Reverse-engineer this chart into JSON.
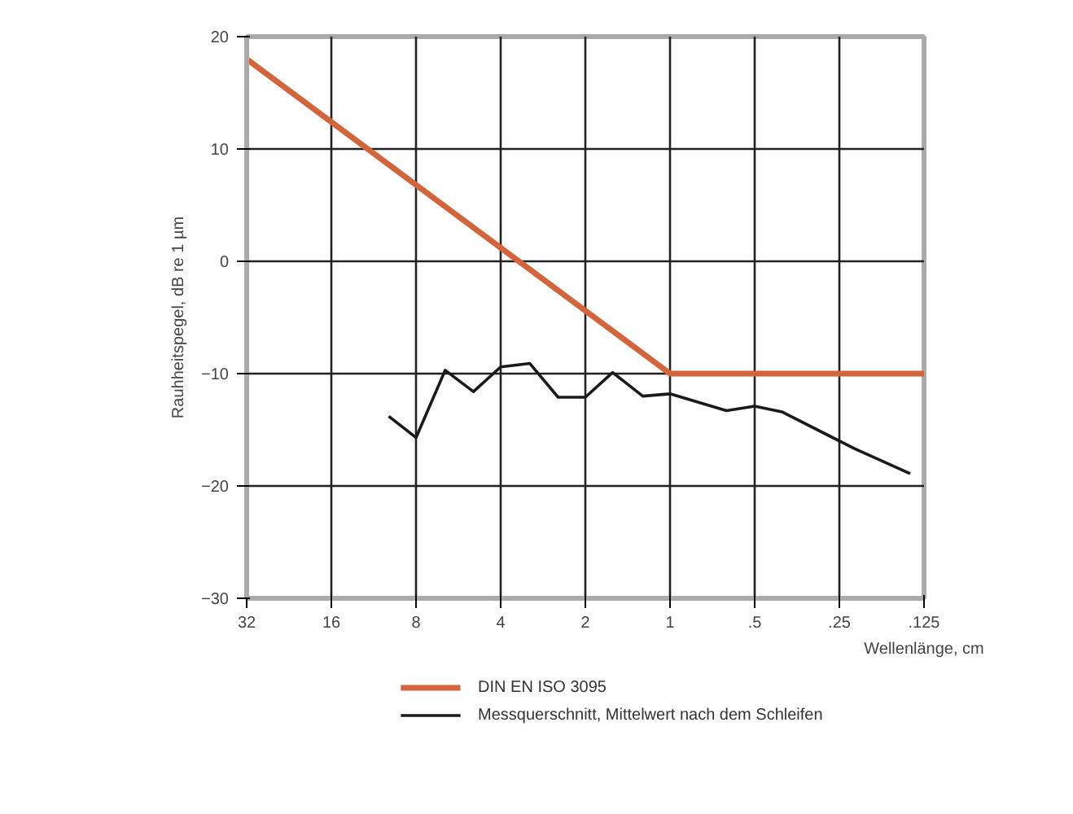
{
  "chart_data": {
    "type": "line",
    "xlabel": "Wellenlänge, cm",
    "ylabel": "Rauhheitspegel, dB re 1 µm",
    "log": "x",
    "xlim": [
      32,
      0.125
    ],
    "xticks": [
      32,
      16,
      8,
      4,
      2,
      1,
      {
        "value": 0.5,
        "label": ".5"
      },
      {
        "value": 0.25,
        "label": ".25"
      },
      {
        "value": 0.125,
        "label": ".125"
      }
    ],
    "ylim": [
      -30,
      20
    ],
    "yticks": [
      -30,
      -20,
      -10,
      0,
      10,
      20
    ],
    "grid": true,
    "legend": "bottom",
    "marker": "none",
    "line_style": "solid",
    "series": [
      {
        "name": "DIN EN ISO 3095",
        "color": "#d4643c",
        "x": [
          32,
          1,
          0.125
        ],
        "values": [
          18,
          -10,
          -10
        ]
      },
      {
        "name": "Messquerschnitt, Mittelwert nach dem Schleifen",
        "color": "#1a1a1a",
        "x": [
          10,
          8,
          6.3,
          5,
          4,
          3.15,
          2.5,
          2,
          1.6,
          1.25,
          1,
          0.63,
          0.5,
          0.4,
          0.22,
          0.14
        ],
        "values": [
          -13.8,
          -15.7,
          -9.7,
          -11.6,
          -9.4,
          -9.1,
          -12.1,
          -12.1,
          -9.9,
          -12.0,
          -11.8,
          -13.3,
          -12.9,
          -13.4,
          -16.7,
          -18.9
        ]
      }
    ]
  }
}
